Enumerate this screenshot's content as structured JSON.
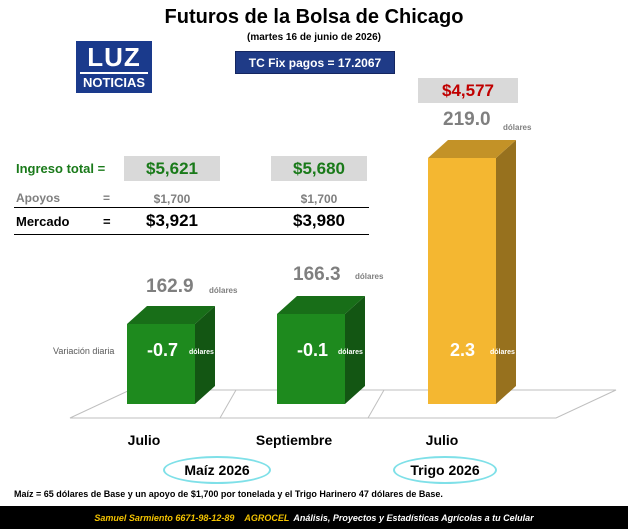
{
  "title": "Futuros de la Bolsa de Chicago",
  "subtitle": "(martes 16 de junio de 2026)",
  "tc_fix": "TC Fix pagos = 17.2067",
  "logo": {
    "top": "LUZ",
    "bottom": "NOTICIAS"
  },
  "wheat_price_mxn": "$4,577",
  "rows": {
    "ingreso_label": "Ingreso total =",
    "apoyos_label": "Apoyos",
    "apoyos_eq": "=",
    "mercado_label": "Mercado",
    "mercado_eq": "=",
    "julio_ingreso": "$5,621",
    "sept_ingreso": "$5,680",
    "julio_apoyos": "$1,700",
    "sept_apoyos": "$1,700",
    "julio_mercado": "$3,921",
    "sept_mercado": "$3,980"
  },
  "variation_label": "Variación diaria",
  "unit_text": "dólares",
  "chart_data": {
    "type": "bar",
    "categories": [
      "Julio",
      "Septiembre",
      "Julio"
    ],
    "groups": [
      "Maíz 2026",
      "Maíz 2026",
      "Trigo 2026"
    ],
    "values": [
      162.9,
      166.3,
      219.0
    ],
    "value_labels": [
      "162.9",
      "166.3",
      "219.0"
    ],
    "daily_change": [
      -0.7,
      -0.1,
      2.3
    ],
    "daily_change_labels": [
      "-0.7",
      "-0.1",
      "2.3"
    ],
    "colors": [
      "#1e8a1e",
      "#1e8a1e",
      "#f4b731"
    ],
    "group_labels": [
      "Maíz 2026",
      "Trigo 2026"
    ]
  },
  "note": "Maíz = 65 dólares de Base y un apoyo de $1,700 por tonelada y el Trigo Harinero 47 dólares de Base.",
  "footer": {
    "name": "Samuel Sarmiento 6671-98-12-89",
    "brand": "AGROCEL",
    "tagline": "Análisis, Proyectos y Estadísticas Agrícolas a tu Celular"
  }
}
